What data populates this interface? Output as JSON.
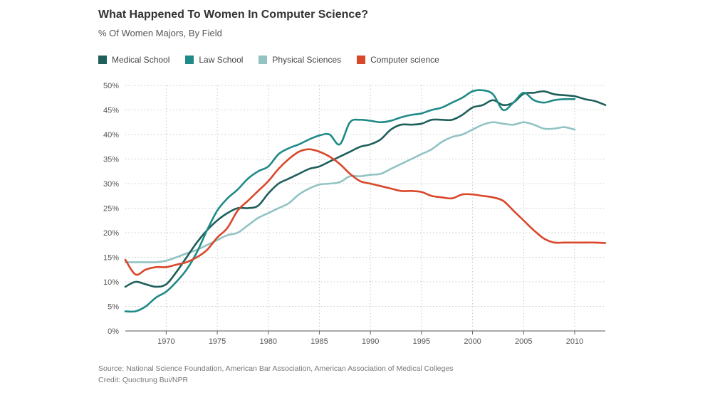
{
  "header": {
    "title": "What Happened To Women In Computer Science?",
    "subtitle": "% Of Women Majors, By Field"
  },
  "footer": {
    "source": "Source: National Science Foundation, American Bar Association, American Association of Medical Colleges",
    "credit": "Credit: Quoctrung Bui/NPR"
  },
  "chart_data": {
    "type": "line",
    "title": "What Happened To Women In Computer Science?",
    "subtitle": "% Of Women Majors, By Field",
    "xlabel": "",
    "ylabel": "",
    "xlim": [
      1966,
      2013
    ],
    "ylim": [
      0,
      50
    ],
    "x_ticks": [
      1970,
      1975,
      1980,
      1985,
      1990,
      1995,
      2000,
      2005,
      2010
    ],
    "y_ticks": [
      0,
      5,
      10,
      15,
      20,
      25,
      30,
      35,
      40,
      45,
      50
    ],
    "y_tick_labels": [
      "0%",
      "5%",
      "10%",
      "15%",
      "20%",
      "25%",
      "30%",
      "35%",
      "40%",
      "45%",
      "50%"
    ],
    "grid": {
      "x": true,
      "y": true,
      "style": "dotted"
    },
    "legend_position": "top-left",
    "series": [
      {
        "name": "Medical School",
        "color": "#1f5f5b",
        "x": [
          1966,
          1967,
          1968,
          1969,
          1970,
          1971,
          1972,
          1973,
          1974,
          1975,
          1976,
          1977,
          1978,
          1979,
          1980,
          1981,
          1982,
          1983,
          1984,
          1985,
          1986,
          1987,
          1988,
          1989,
          1990,
          1991,
          1992,
          1993,
          1994,
          1995,
          1996,
          1997,
          1998,
          1999,
          2000,
          2001,
          2002,
          2003,
          2004,
          2005,
          2006,
          2007,
          2008,
          2009,
          2010,
          2011,
          2012,
          2013
        ],
        "y": [
          9,
          10,
          9.5,
          9,
          9.5,
          12,
          15,
          18,
          20.5,
          22.5,
          24,
          25,
          25,
          25.5,
          28,
          30,
          31,
          32,
          33,
          33.5,
          34.5,
          35.5,
          36.5,
          37.5,
          38,
          39,
          41,
          42,
          42,
          42.2,
          43,
          43,
          43,
          44,
          45.5,
          46,
          47,
          46,
          46.5,
          48.3,
          48.5,
          48.8,
          48.2,
          48,
          47.8,
          47.2,
          46.8,
          46
        ]
      },
      {
        "name": "Law School",
        "color": "#1f8a87",
        "x": [
          1966,
          1967,
          1968,
          1969,
          1970,
          1971,
          1972,
          1973,
          1974,
          1975,
          1976,
          1977,
          1978,
          1979,
          1980,
          1981,
          1982,
          1983,
          1984,
          1985,
          1986,
          1987,
          1988,
          1989,
          1990,
          1991,
          1992,
          1993,
          1994,
          1995,
          1996,
          1997,
          1998,
          1999,
          2000,
          2001,
          2002,
          2003,
          2004,
          2005,
          2006,
          2007,
          2008,
          2009,
          2010
        ],
        "y": [
          4,
          4,
          5,
          6.8,
          8,
          10,
          12.5,
          16,
          20.5,
          24.5,
          27,
          28.8,
          31,
          32.5,
          33.5,
          36,
          37.2,
          38,
          39,
          39.8,
          40,
          38,
          42.5,
          43,
          42.8,
          42.5,
          42.8,
          43.5,
          44,
          44.3,
          45,
          45.5,
          46.5,
          47.5,
          48.8,
          49,
          48.2,
          45,
          46.5,
          48.5,
          47,
          46.5,
          47,
          47.2,
          47.2
        ]
      },
      {
        "name": "Physical Sciences",
        "color": "#92c3c3",
        "x": [
          1966,
          1967,
          1968,
          1969,
          1970,
          1971,
          1972,
          1973,
          1974,
          1975,
          1976,
          1977,
          1978,
          1979,
          1980,
          1981,
          1982,
          1983,
          1984,
          1985,
          1986,
          1987,
          1988,
          1989,
          1990,
          1991,
          1992,
          1993,
          1994,
          1995,
          1996,
          1997,
          1998,
          1999,
          2000,
          2001,
          2002,
          2003,
          2004,
          2005,
          2006,
          2007,
          2008,
          2009,
          2010
        ],
        "y": [
          14,
          14,
          14,
          14,
          14.3,
          15,
          15.8,
          16.5,
          17.5,
          18.5,
          19.5,
          20,
          21.5,
          23,
          24,
          25,
          26,
          27.8,
          29,
          29.8,
          30,
          30.3,
          31.5,
          31.5,
          31.8,
          32,
          33,
          34,
          35,
          36,
          37,
          38.5,
          39.5,
          40,
          41,
          42,
          42.5,
          42.2,
          42,
          42.5,
          42,
          41.2,
          41.2,
          41.5,
          41
        ]
      },
      {
        "name": "Computer science",
        "color": "#d9472b",
        "x": [
          1966,
          1967,
          1968,
          1969,
          1970,
          1971,
          1972,
          1973,
          1974,
          1975,
          1976,
          1977,
          1978,
          1979,
          1980,
          1981,
          1982,
          1983,
          1984,
          1985,
          1986,
          1987,
          1988,
          1989,
          1990,
          1991,
          1992,
          1993,
          1994,
          1995,
          1996,
          1997,
          1998,
          1999,
          2000,
          2001,
          2002,
          2003,
          2004,
          2005,
          2006,
          2007,
          2008,
          2009,
          2010,
          2011,
          2012,
          2013
        ],
        "y": [
          14.5,
          11.5,
          12.5,
          13,
          13,
          13.5,
          14,
          15,
          16.5,
          19,
          21,
          24.5,
          26.5,
          28.5,
          30.5,
          33,
          35,
          36.5,
          37,
          36.5,
          35.5,
          34,
          32,
          30.5,
          30,
          29.5,
          29,
          28.5,
          28.5,
          28.3,
          27.5,
          27.2,
          27,
          27.8,
          27.8,
          27.5,
          27.2,
          26.5,
          24.5,
          22.5,
          20.5,
          18.8,
          18,
          18,
          18,
          18,
          18,
          17.9
        ]
      }
    ]
  }
}
